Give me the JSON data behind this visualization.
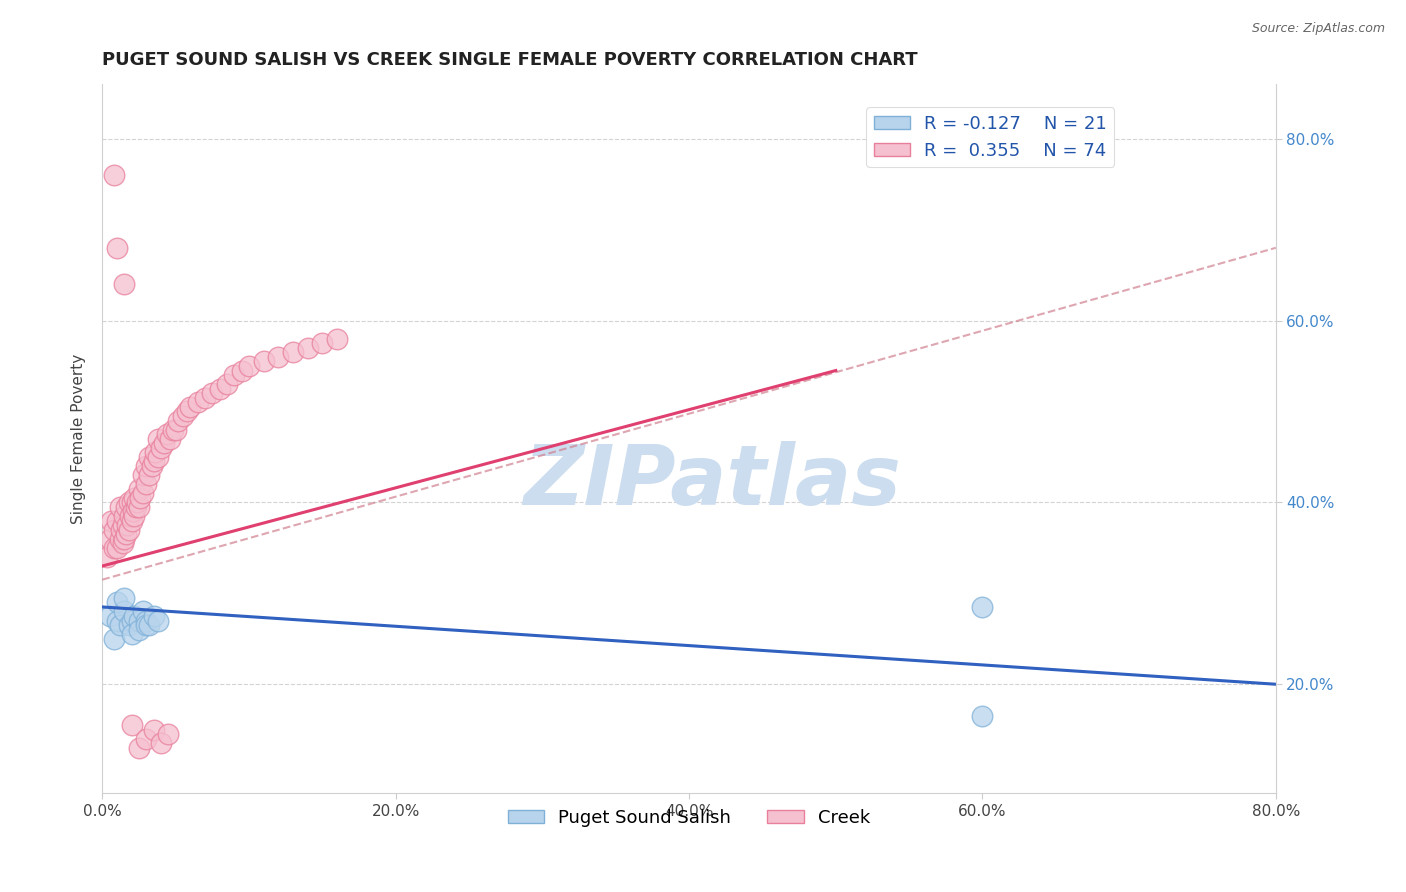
{
  "title": "PUGET SOUND SALISH VS CREEK SINGLE FEMALE POVERTY CORRELATION CHART",
  "source": "Source: ZipAtlas.com",
  "xlabel": "",
  "ylabel": "Single Female Poverty",
  "xlim": [
    0.0,
    0.8
  ],
  "ylim": [
    0.08,
    0.86
  ],
  "xticks": [
    0.0,
    0.2,
    0.4,
    0.6,
    0.8
  ],
  "xtick_labels": [
    "0.0%",
    "20.0%",
    "40.0%",
    "60.0%",
    "80.0%"
  ],
  "yticks": [
    0.2,
    0.4,
    0.6,
    0.8
  ],
  "ytick_labels": [
    "20.0%",
    "40.0%",
    "60.0%",
    "80.0%"
  ],
  "blue_R": -0.127,
  "blue_N": 21,
  "pink_R": 0.355,
  "pink_N": 74,
  "blue_face": "#b8d4ec",
  "blue_edge": "#7fb0d8",
  "pink_face": "#f5c0d0",
  "pink_edge": "#e8809c",
  "blue_line_color": "#3060c0",
  "pink_line_color": "#e04070",
  "dashed_line_color": "#d08090",
  "watermark": "ZIPatlas",
  "watermark_color": "#ccddf0",
  "blue_scatter_x": [
    0.005,
    0.008,
    0.01,
    0.01,
    0.012,
    0.015,
    0.015,
    0.018,
    0.02,
    0.02,
    0.022,
    0.025,
    0.025,
    0.028,
    0.03,
    0.03,
    0.032,
    0.035,
    0.038,
    0.6,
    0.6
  ],
  "blue_scatter_y": [
    0.275,
    0.25,
    0.27,
    0.29,
    0.265,
    0.28,
    0.295,
    0.265,
    0.27,
    0.255,
    0.275,
    0.27,
    0.26,
    0.28,
    0.27,
    0.265,
    0.265,
    0.275,
    0.27,
    0.285,
    0.165
  ],
  "pink_scatter_x": [
    0.003,
    0.005,
    0.006,
    0.008,
    0.008,
    0.01,
    0.01,
    0.012,
    0.012,
    0.013,
    0.014,
    0.014,
    0.015,
    0.015,
    0.016,
    0.016,
    0.017,
    0.018,
    0.018,
    0.019,
    0.02,
    0.02,
    0.021,
    0.022,
    0.022,
    0.023,
    0.024,
    0.025,
    0.025,
    0.026,
    0.028,
    0.028,
    0.03,
    0.03,
    0.032,
    0.032,
    0.034,
    0.035,
    0.036,
    0.038,
    0.038,
    0.04,
    0.042,
    0.044,
    0.046,
    0.048,
    0.05,
    0.052,
    0.055,
    0.058,
    0.06,
    0.065,
    0.07,
    0.075,
    0.08,
    0.085,
    0.09,
    0.095,
    0.1,
    0.11,
    0.12,
    0.13,
    0.14,
    0.15,
    0.16,
    0.008,
    0.01,
    0.015,
    0.02,
    0.025,
    0.03,
    0.035,
    0.04,
    0.045
  ],
  "pink_scatter_y": [
    0.34,
    0.36,
    0.38,
    0.35,
    0.37,
    0.35,
    0.38,
    0.36,
    0.395,
    0.37,
    0.355,
    0.375,
    0.36,
    0.385,
    0.365,
    0.395,
    0.375,
    0.37,
    0.4,
    0.385,
    0.38,
    0.4,
    0.39,
    0.385,
    0.405,
    0.395,
    0.4,
    0.395,
    0.415,
    0.405,
    0.41,
    0.43,
    0.42,
    0.44,
    0.43,
    0.45,
    0.44,
    0.445,
    0.455,
    0.45,
    0.47,
    0.46,
    0.465,
    0.475,
    0.47,
    0.48,
    0.48,
    0.49,
    0.495,
    0.5,
    0.505,
    0.51,
    0.515,
    0.52,
    0.525,
    0.53,
    0.54,
    0.545,
    0.55,
    0.555,
    0.56,
    0.565,
    0.57,
    0.575,
    0.58,
    0.76,
    0.68,
    0.64,
    0.155,
    0.13,
    0.14,
    0.15,
    0.135,
    0.145
  ],
  "title_fontsize": 13,
  "axis_label_fontsize": 11,
  "tick_fontsize": 11,
  "legend_fontsize": 13,
  "watermark_fontsize": 60,
  "blue_line_x0": 0.0,
  "blue_line_y0": 0.285,
  "blue_line_x1": 0.8,
  "blue_line_y1": 0.2,
  "pink_line_x0": 0.0,
  "pink_line_y0": 0.33,
  "pink_line_x1": 0.5,
  "pink_line_y1": 0.545,
  "dashed_line_x0": 0.0,
  "dashed_line_y0": 0.315,
  "dashed_line_x1": 0.8,
  "dashed_line_y1": 0.68
}
